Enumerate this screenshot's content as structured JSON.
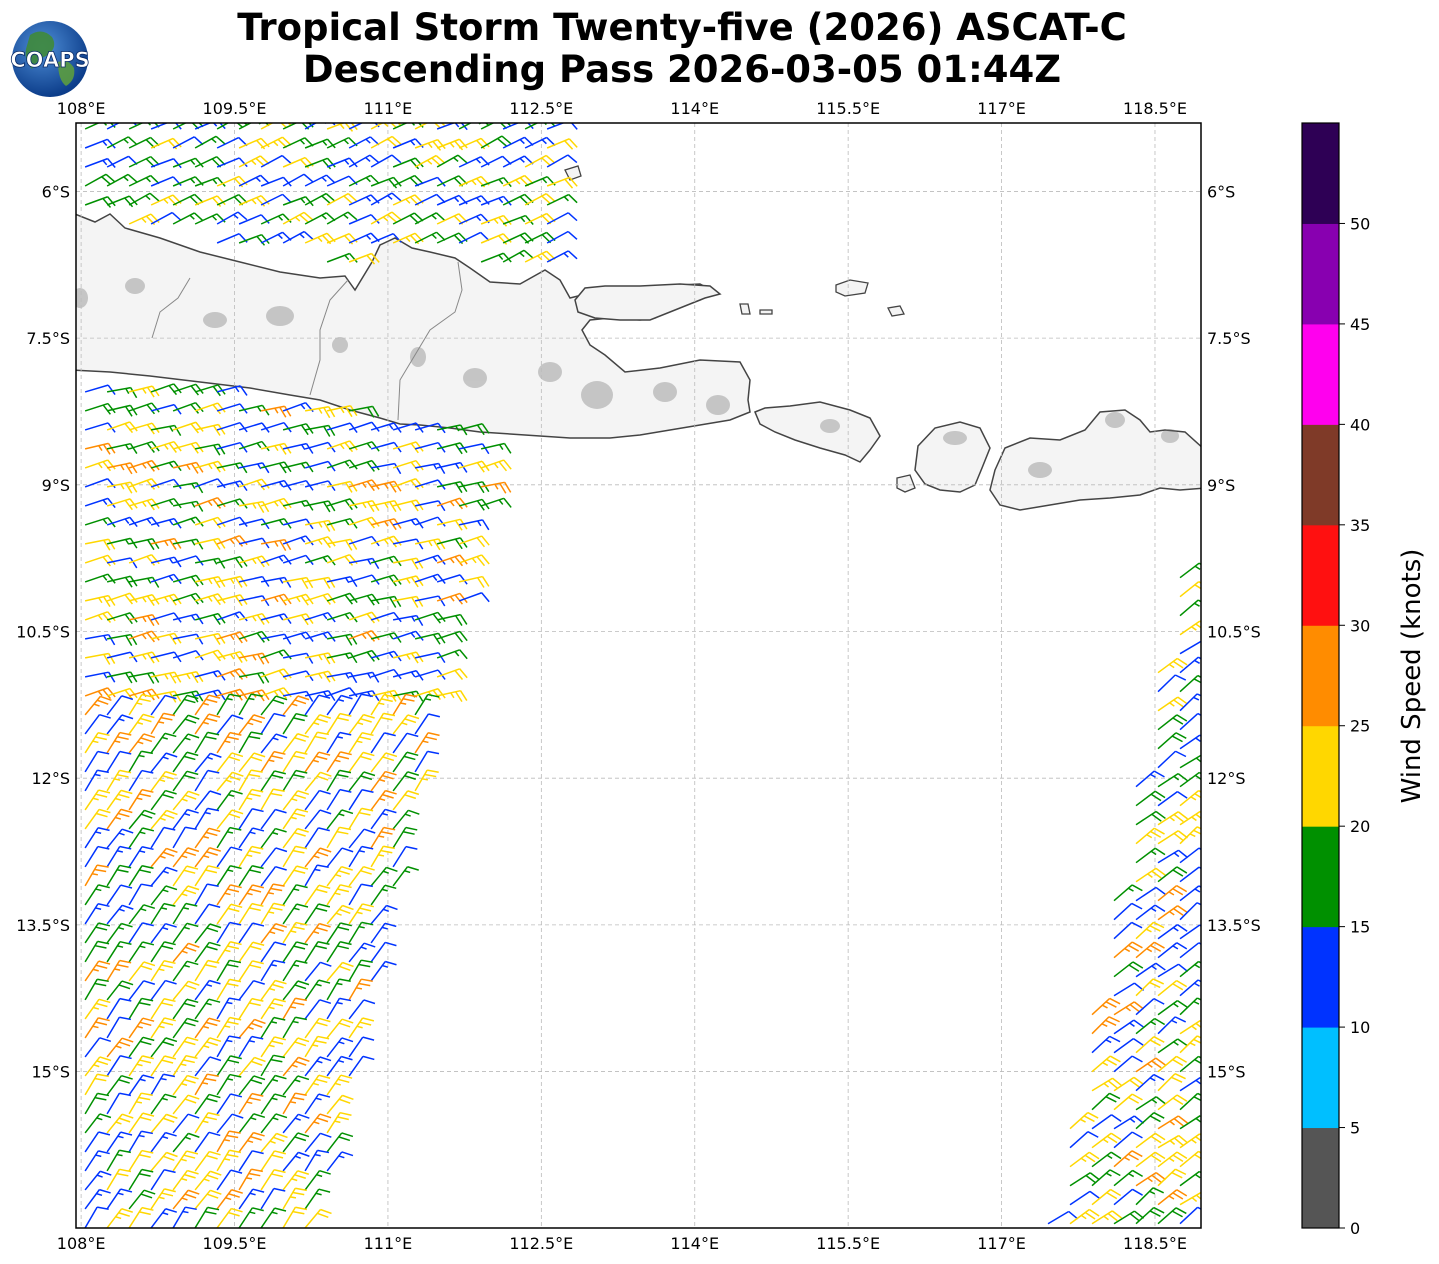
{
  "title": {
    "line1": "Tropical Storm Twenty-five (2026) ASCAT-C",
    "line2": "Descending Pass 2026-03-05 01:44Z"
  },
  "logo": {
    "text": "COAPS",
    "icon": "globe-icon"
  },
  "map": {
    "lon_range": [
      107.95,
      118.95
    ],
    "lat_range": [
      -16.6,
      -5.3
    ],
    "lon_ticks": [
      {
        "value": 108.0,
        "label": "108°E"
      },
      {
        "value": 109.5,
        "label": "109.5°E"
      },
      {
        "value": 111.0,
        "label": "111°E"
      },
      {
        "value": 112.5,
        "label": "112.5°E"
      },
      {
        "value": 114.0,
        "label": "114°E"
      },
      {
        "value": 115.5,
        "label": "115.5°E"
      },
      {
        "value": 117.0,
        "label": "117°E"
      },
      {
        "value": 118.5,
        "label": "118.5°E"
      }
    ],
    "lat_ticks": [
      {
        "value": -6.0,
        "label": "6°S"
      },
      {
        "value": -7.5,
        "label": "7.5°S"
      },
      {
        "value": -9.0,
        "label": "9°S"
      },
      {
        "value": -10.5,
        "label": "10.5°S"
      },
      {
        "value": -12.0,
        "label": "12°S"
      },
      {
        "value": -13.5,
        "label": "13.5°S"
      },
      {
        "value": -15.0,
        "label": "15°S"
      }
    ],
    "land_color": "#f4f4f4",
    "coast_color": "#444444",
    "grid_color": "#bbbbbb"
  },
  "colorbar": {
    "label": "Wind Speed (knots)",
    "bins": [
      {
        "min": 0,
        "max": 5,
        "color": "#555555"
      },
      {
        "min": 5,
        "max": 10,
        "color": "#00bfff"
      },
      {
        "min": 10,
        "max": 15,
        "color": "#0033ff"
      },
      {
        "min": 15,
        "max": 20,
        "color": "#009000"
      },
      {
        "min": 20,
        "max": 25,
        "color": "#ffd700"
      },
      {
        "min": 25,
        "max": 30,
        "color": "#ff8c00"
      },
      {
        "min": 30,
        "max": 35,
        "color": "#ff1010"
      },
      {
        "min": 35,
        "max": 40,
        "color": "#7f3a28"
      },
      {
        "min": 40,
        "max": 45,
        "color": "#ff00ee"
      },
      {
        "min": 45,
        "max": 50,
        "color": "#8800b0"
      },
      {
        "min": 50,
        "max": 55,
        "color": "#2e0055"
      }
    ],
    "tick_labels": [
      "0",
      "5",
      "10",
      "15",
      "20",
      "25",
      "30",
      "35",
      "40",
      "45",
      "50"
    ]
  },
  "wind_swaths": [
    {
      "region": "northwest-java-sea",
      "lon": [
        108.0,
        112.7
      ],
      "lat": [
        -5.3,
        -7.0
      ],
      "speed_knots": [
        10,
        25
      ]
    },
    {
      "region": "west-south-of-java",
      "lon": [
        108.0,
        112.5
      ],
      "lat": [
        -7.6,
        -16.6
      ],
      "speed_knots": [
        10,
        27
      ]
    },
    {
      "region": "southeast-swath",
      "lon": [
        117.2,
        118.9
      ],
      "lat": [
        -9.5,
        -16.6
      ],
      "speed_knots": [
        10,
        27
      ]
    }
  ]
}
